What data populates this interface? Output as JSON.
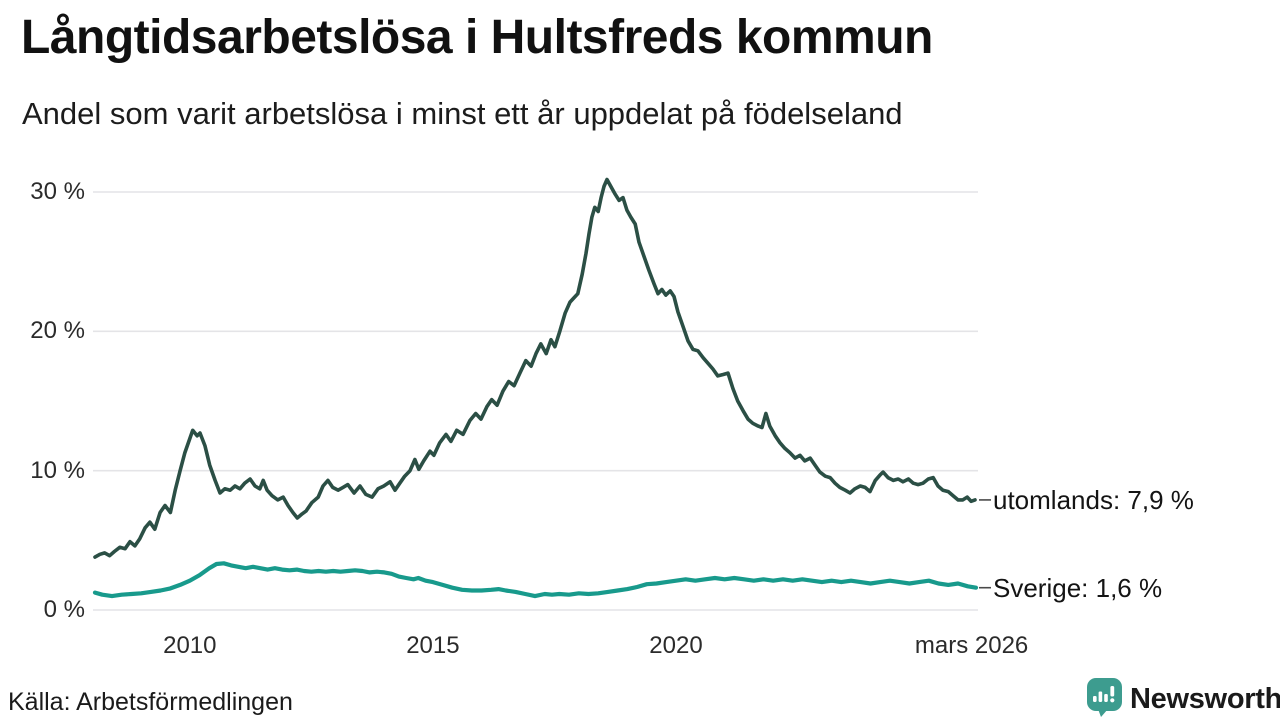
{
  "header": {
    "title": "Långtidsarbetslösa i Hultsfreds kommun",
    "subtitle": "Andel som varit arbetslösa i minst ett år uppdelat på födelseland"
  },
  "footer": {
    "source": "Källa: Arbetsförmedlingen",
    "brand": "Newsworthy",
    "brand_color": "#3d9c8f"
  },
  "chart_data": {
    "type": "line",
    "title": "Långtidsarbetslösa i Hultsfreds kommun",
    "subtitle": "Andel som varit arbetslösa i minst ett år uppdelat på födelseland",
    "unit": "%",
    "x_domain": [
      2008.05,
      2026.15
    ],
    "y_domain": [
      0,
      31
    ],
    "grid": true,
    "background": "#ffffff",
    "gridline_color": "#e4e4e7",
    "x_ticks": [
      {
        "value": 2010,
        "label": "2010"
      },
      {
        "value": 2015,
        "label": "2015"
      },
      {
        "value": 2020,
        "label": "2020"
      },
      {
        "value": 2026.08,
        "label": "mars 2026"
      }
    ],
    "y_ticks": [
      {
        "value": 0,
        "label": "0 %"
      },
      {
        "value": 10,
        "label": "10 %"
      },
      {
        "value": 20,
        "label": "20 %"
      },
      {
        "value": 30,
        "label": "30 %"
      }
    ],
    "series": [
      {
        "id": "utomlands",
        "name": "utomlands",
        "end_label": "utomlands: 7,9 %",
        "last_value": 7.9,
        "color": "#2b4f45",
        "stroke_width": 3.6,
        "points": [
          [
            2008.05,
            3.8
          ],
          [
            2008.15,
            4.0
          ],
          [
            2008.25,
            4.1
          ],
          [
            2008.35,
            3.9
          ],
          [
            2008.45,
            4.2
          ],
          [
            2008.56,
            4.5
          ],
          [
            2008.67,
            4.4
          ],
          [
            2008.77,
            4.9
          ],
          [
            2008.87,
            4.6
          ],
          [
            2008.97,
            5.1
          ],
          [
            2009.08,
            5.9
          ],
          [
            2009.18,
            6.3
          ],
          [
            2009.28,
            5.8
          ],
          [
            2009.39,
            7.0
          ],
          [
            2009.49,
            7.5
          ],
          [
            2009.6,
            7.0
          ],
          [
            2009.7,
            8.6
          ],
          [
            2009.8,
            10.0
          ],
          [
            2009.9,
            11.3
          ],
          [
            2010.0,
            12.3
          ],
          [
            2010.06,
            12.9
          ],
          [
            2010.15,
            12.5
          ],
          [
            2010.21,
            12.7
          ],
          [
            2010.31,
            11.8
          ],
          [
            2010.41,
            10.4
          ],
          [
            2010.52,
            9.3
          ],
          [
            2010.62,
            8.4
          ],
          [
            2010.72,
            8.7
          ],
          [
            2010.83,
            8.6
          ],
          [
            2010.93,
            8.9
          ],
          [
            2011.03,
            8.7
          ],
          [
            2011.13,
            9.1
          ],
          [
            2011.24,
            9.4
          ],
          [
            2011.34,
            8.9
          ],
          [
            2011.44,
            8.7
          ],
          [
            2011.51,
            9.3
          ],
          [
            2011.59,
            8.6
          ],
          [
            2011.69,
            8.2
          ],
          [
            2011.81,
            7.9
          ],
          [
            2011.92,
            8.1
          ],
          [
            2012.02,
            7.5
          ],
          [
            2012.12,
            7.0
          ],
          [
            2012.21,
            6.6
          ],
          [
            2012.31,
            6.9
          ],
          [
            2012.39,
            7.1
          ],
          [
            2012.51,
            7.7
          ],
          [
            2012.64,
            8.1
          ],
          [
            2012.74,
            8.9
          ],
          [
            2012.84,
            9.3
          ],
          [
            2012.94,
            8.8
          ],
          [
            2013.05,
            8.6
          ],
          [
            2013.15,
            8.8
          ],
          [
            2013.25,
            9.0
          ],
          [
            2013.38,
            8.4
          ],
          [
            2013.5,
            8.9
          ],
          [
            2013.62,
            8.3
          ],
          [
            2013.75,
            8.1
          ],
          [
            2013.87,
            8.7
          ],
          [
            2013.99,
            8.9
          ],
          [
            2014.12,
            9.2
          ],
          [
            2014.22,
            8.6
          ],
          [
            2014.32,
            9.1
          ],
          [
            2014.42,
            9.6
          ],
          [
            2014.53,
            10.0
          ],
          [
            2014.63,
            10.8
          ],
          [
            2014.71,
            10.1
          ],
          [
            2014.81,
            10.7
          ],
          [
            2014.94,
            11.4
          ],
          [
            2015.02,
            11.1
          ],
          [
            2015.14,
            12.0
          ],
          [
            2015.27,
            12.6
          ],
          [
            2015.37,
            12.1
          ],
          [
            2015.49,
            12.9
          ],
          [
            2015.62,
            12.6
          ],
          [
            2015.76,
            13.6
          ],
          [
            2015.88,
            14.1
          ],
          [
            2015.99,
            13.7
          ],
          [
            2016.11,
            14.6
          ],
          [
            2016.21,
            15.1
          ],
          [
            2016.32,
            14.7
          ],
          [
            2016.44,
            15.7
          ],
          [
            2016.56,
            16.4
          ],
          [
            2016.67,
            16.1
          ],
          [
            2016.79,
            17.0
          ],
          [
            2016.91,
            17.9
          ],
          [
            2017.02,
            17.5
          ],
          [
            2017.12,
            18.4
          ],
          [
            2017.22,
            19.1
          ],
          [
            2017.33,
            18.4
          ],
          [
            2017.43,
            19.4
          ],
          [
            2017.51,
            18.9
          ],
          [
            2017.61,
            20.0
          ],
          [
            2017.72,
            21.3
          ],
          [
            2017.82,
            22.1
          ],
          [
            2017.9,
            22.4
          ],
          [
            2017.98,
            22.7
          ],
          [
            2018.07,
            24.1
          ],
          [
            2018.15,
            25.6
          ],
          [
            2018.21,
            27.0
          ],
          [
            2018.27,
            28.2
          ],
          [
            2018.33,
            28.9
          ],
          [
            2018.4,
            28.6
          ],
          [
            2018.46,
            29.6
          ],
          [
            2018.52,
            30.4
          ],
          [
            2018.58,
            30.9
          ],
          [
            2018.66,
            30.4
          ],
          [
            2018.74,
            29.9
          ],
          [
            2018.83,
            29.4
          ],
          [
            2018.91,
            29.6
          ],
          [
            2018.99,
            28.7
          ],
          [
            2019.07,
            28.2
          ],
          [
            2019.16,
            27.7
          ],
          [
            2019.24,
            26.4
          ],
          [
            2019.34,
            25.4
          ],
          [
            2019.44,
            24.4
          ],
          [
            2019.55,
            23.4
          ],
          [
            2019.63,
            22.7
          ],
          [
            2019.71,
            23.0
          ],
          [
            2019.79,
            22.6
          ],
          [
            2019.88,
            22.9
          ],
          [
            2019.96,
            22.5
          ],
          [
            2020.04,
            21.4
          ],
          [
            2020.14,
            20.4
          ],
          [
            2020.25,
            19.3
          ],
          [
            2020.35,
            18.7
          ],
          [
            2020.45,
            18.6
          ],
          [
            2020.56,
            18.1
          ],
          [
            2020.66,
            17.7
          ],
          [
            2020.76,
            17.3
          ],
          [
            2020.86,
            16.8
          ],
          [
            2020.97,
            16.9
          ],
          [
            2021.07,
            17.0
          ],
          [
            2021.17,
            15.9
          ],
          [
            2021.27,
            15.0
          ],
          [
            2021.38,
            14.3
          ],
          [
            2021.48,
            13.7
          ],
          [
            2021.58,
            13.4
          ],
          [
            2021.69,
            13.2
          ],
          [
            2021.77,
            13.1
          ],
          [
            2021.85,
            14.1
          ],
          [
            2021.93,
            13.2
          ],
          [
            2022.04,
            12.5
          ],
          [
            2022.14,
            12.0
          ],
          [
            2022.24,
            11.6
          ],
          [
            2022.34,
            11.3
          ],
          [
            2022.45,
            10.9
          ],
          [
            2022.55,
            11.1
          ],
          [
            2022.65,
            10.7
          ],
          [
            2022.76,
            10.9
          ],
          [
            2022.86,
            10.4
          ],
          [
            2022.96,
            9.9
          ],
          [
            2023.07,
            9.6
          ],
          [
            2023.17,
            9.5
          ],
          [
            2023.27,
            9.1
          ],
          [
            2023.37,
            8.8
          ],
          [
            2023.48,
            8.6
          ],
          [
            2023.58,
            8.4
          ],
          [
            2023.68,
            8.7
          ],
          [
            2023.79,
            8.9
          ],
          [
            2023.89,
            8.8
          ],
          [
            2023.99,
            8.5
          ],
          [
            2024.1,
            9.3
          ],
          [
            2024.2,
            9.7
          ],
          [
            2024.26,
            9.9
          ],
          [
            2024.36,
            9.5
          ],
          [
            2024.47,
            9.3
          ],
          [
            2024.57,
            9.4
          ],
          [
            2024.67,
            9.2
          ],
          [
            2024.78,
            9.4
          ],
          [
            2024.88,
            9.1
          ],
          [
            2024.98,
            9.0
          ],
          [
            2025.08,
            9.1
          ],
          [
            2025.19,
            9.4
          ],
          [
            2025.29,
            9.5
          ],
          [
            2025.39,
            8.9
          ],
          [
            2025.49,
            8.6
          ],
          [
            2025.6,
            8.5
          ],
          [
            2025.7,
            8.2
          ],
          [
            2025.8,
            7.9
          ],
          [
            2025.9,
            7.9
          ],
          [
            2025.99,
            8.1
          ],
          [
            2026.07,
            7.8
          ],
          [
            2026.15,
            7.9
          ]
        ]
      },
      {
        "id": "sverige",
        "name": "Sverige",
        "end_label": "Sverige: 1,6 %",
        "last_value": 1.6,
        "color": "#189a8c",
        "stroke_width": 4.2,
        "points": [
          [
            2008.05,
            1.25
          ],
          [
            2008.2,
            1.1
          ],
          [
            2008.4,
            1.0
          ],
          [
            2008.6,
            1.1
          ],
          [
            2008.8,
            1.15
          ],
          [
            2009.0,
            1.2
          ],
          [
            2009.2,
            1.3
          ],
          [
            2009.4,
            1.4
          ],
          [
            2009.6,
            1.55
          ],
          [
            2009.8,
            1.8
          ],
          [
            2010.0,
            2.1
          ],
          [
            2010.2,
            2.5
          ],
          [
            2010.4,
            3.0
          ],
          [
            2010.55,
            3.3
          ],
          [
            2010.7,
            3.35
          ],
          [
            2010.85,
            3.2
          ],
          [
            2011.0,
            3.1
          ],
          [
            2011.15,
            3.0
          ],
          [
            2011.3,
            3.1
          ],
          [
            2011.45,
            3.0
          ],
          [
            2011.6,
            2.9
          ],
          [
            2011.75,
            3.0
          ],
          [
            2011.9,
            2.9
          ],
          [
            2012.05,
            2.85
          ],
          [
            2012.2,
            2.9
          ],
          [
            2012.35,
            2.8
          ],
          [
            2012.5,
            2.75
          ],
          [
            2012.65,
            2.8
          ],
          [
            2012.8,
            2.75
          ],
          [
            2012.95,
            2.8
          ],
          [
            2013.1,
            2.75
          ],
          [
            2013.25,
            2.8
          ],
          [
            2013.4,
            2.85
          ],
          [
            2013.55,
            2.8
          ],
          [
            2013.7,
            2.7
          ],
          [
            2013.85,
            2.75
          ],
          [
            2014.0,
            2.7
          ],
          [
            2014.15,
            2.6
          ],
          [
            2014.3,
            2.4
          ],
          [
            2014.45,
            2.3
          ],
          [
            2014.6,
            2.2
          ],
          [
            2014.7,
            2.3
          ],
          [
            2014.85,
            2.1
          ],
          [
            2015.0,
            2.0
          ],
          [
            2015.2,
            1.8
          ],
          [
            2015.4,
            1.6
          ],
          [
            2015.6,
            1.45
          ],
          [
            2015.8,
            1.4
          ],
          [
            2016.0,
            1.4
          ],
          [
            2016.2,
            1.45
          ],
          [
            2016.35,
            1.5
          ],
          [
            2016.5,
            1.4
          ],
          [
            2016.7,
            1.3
          ],
          [
            2016.9,
            1.15
          ],
          [
            2017.1,
            1.0
          ],
          [
            2017.3,
            1.15
          ],
          [
            2017.45,
            1.1
          ],
          [
            2017.6,
            1.15
          ],
          [
            2017.8,
            1.1
          ],
          [
            2018.0,
            1.2
          ],
          [
            2018.2,
            1.15
          ],
          [
            2018.4,
            1.2
          ],
          [
            2018.6,
            1.3
          ],
          [
            2018.8,
            1.4
          ],
          [
            2019.0,
            1.5
          ],
          [
            2019.2,
            1.65
          ],
          [
            2019.4,
            1.85
          ],
          [
            2019.6,
            1.9
          ],
          [
            2019.8,
            2.0
          ],
          [
            2020.0,
            2.1
          ],
          [
            2020.2,
            2.2
          ],
          [
            2020.4,
            2.1
          ],
          [
            2020.6,
            2.2
          ],
          [
            2020.8,
            2.3
          ],
          [
            2021.0,
            2.2
          ],
          [
            2021.2,
            2.3
          ],
          [
            2021.4,
            2.2
          ],
          [
            2021.6,
            2.1
          ],
          [
            2021.8,
            2.2
          ],
          [
            2022.0,
            2.1
          ],
          [
            2022.2,
            2.2
          ],
          [
            2022.4,
            2.1
          ],
          [
            2022.6,
            2.2
          ],
          [
            2022.8,
            2.1
          ],
          [
            2023.0,
            2.0
          ],
          [
            2023.2,
            2.1
          ],
          [
            2023.4,
            2.0
          ],
          [
            2023.6,
            2.1
          ],
          [
            2023.8,
            2.0
          ],
          [
            2024.0,
            1.9
          ],
          [
            2024.2,
            2.0
          ],
          [
            2024.4,
            2.1
          ],
          [
            2024.6,
            2.0
          ],
          [
            2024.8,
            1.9
          ],
          [
            2025.0,
            2.0
          ],
          [
            2025.2,
            2.1
          ],
          [
            2025.4,
            1.9
          ],
          [
            2025.6,
            1.8
          ],
          [
            2025.8,
            1.9
          ],
          [
            2026.0,
            1.7
          ],
          [
            2026.17,
            1.6
          ]
        ]
      }
    ]
  }
}
